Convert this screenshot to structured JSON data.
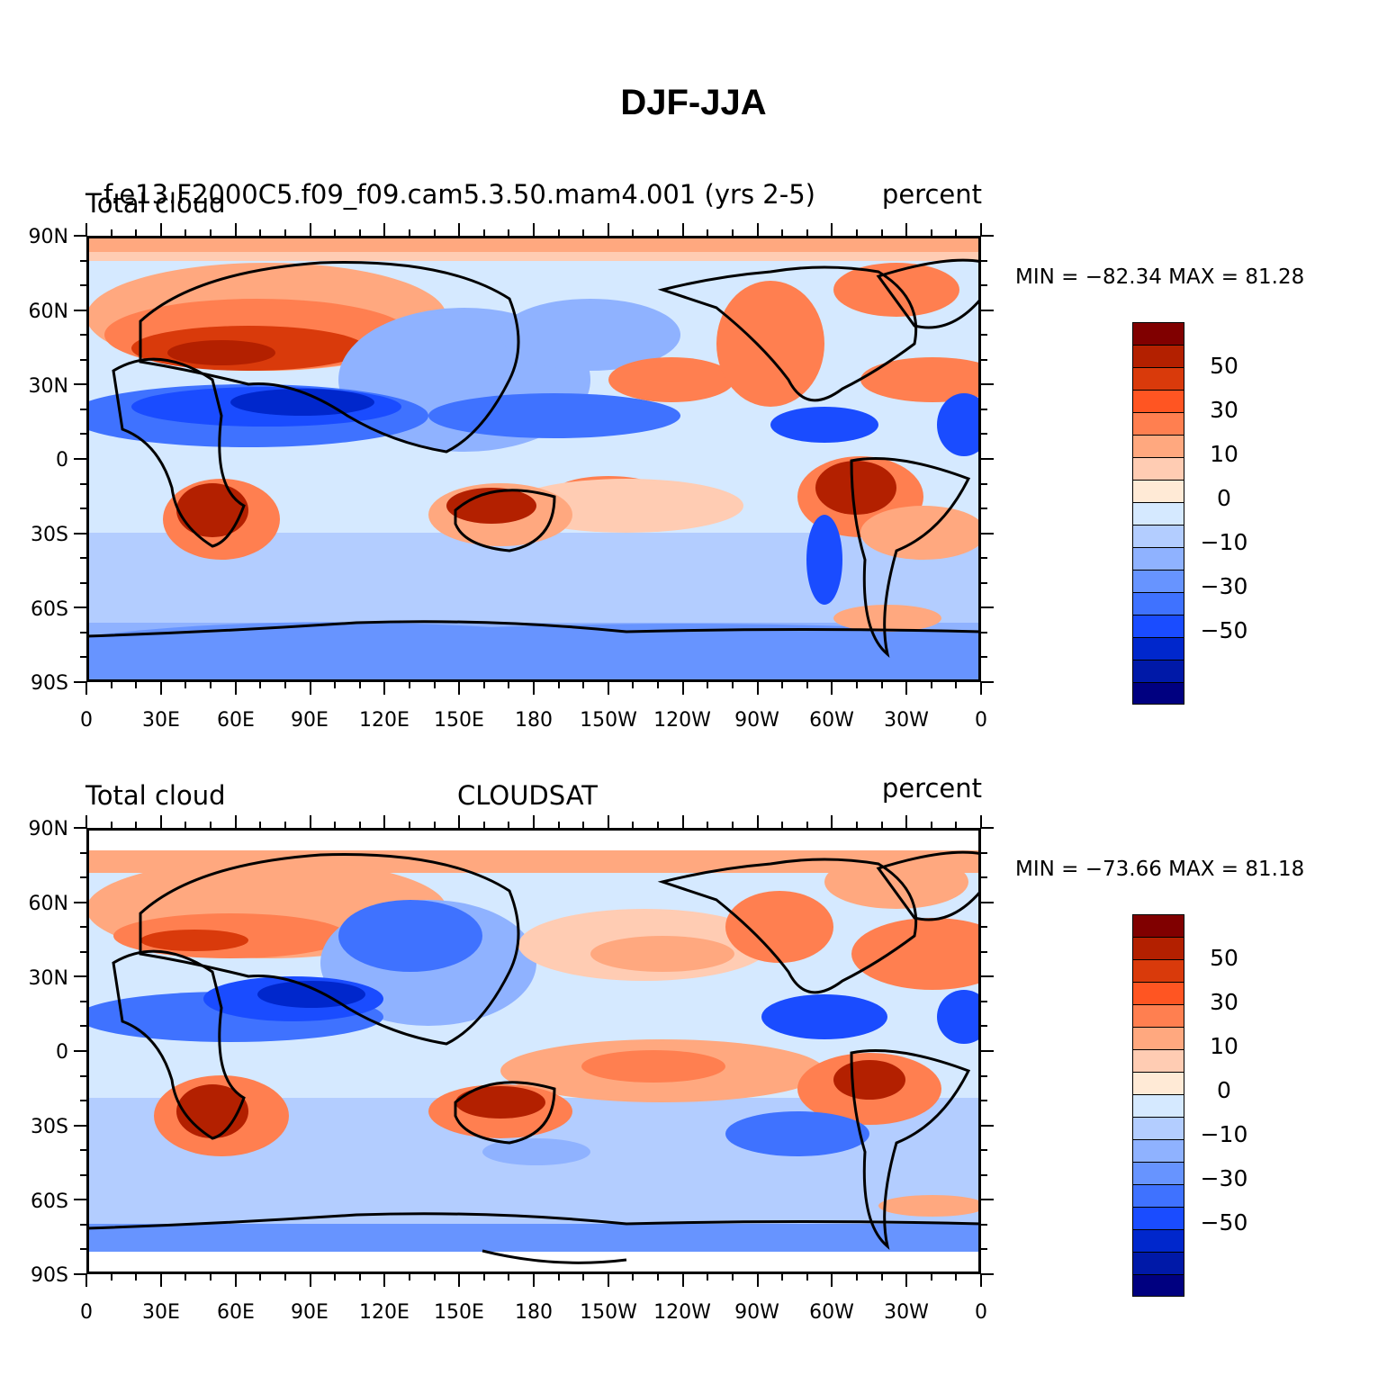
{
  "title": "DJF-JJA",
  "colors": [
    "#000080",
    "#0019a8",
    "#0027cc",
    "#1a4cff",
    "#3f72ff",
    "#6794ff",
    "#8fb2ff",
    "#b3cdff",
    "#d5e9ff",
    "#ffead6",
    "#ffccb3",
    "#ffa87f",
    "#ff7f50",
    "#ff5522",
    "#d93a0b",
    "#b32000",
    "#800000"
  ],
  "colorbar_labels": [
    "50",
    "30",
    "10",
    "0",
    "−10",
    "−30",
    "−50"
  ],
  "lat_labels": [
    "90N",
    "60N",
    "30N",
    "0",
    "30S",
    "60S",
    "90S"
  ],
  "lon_labels": [
    "0",
    "30E",
    "60E",
    "90E",
    "120E",
    "150E",
    "180",
    "150W",
    "120W",
    "90W",
    "60W",
    "30W",
    "0"
  ],
  "panels": [
    {
      "id": "model",
      "left_label": "Total cloud",
      "center_label": "f.e13.F2000C5.f09_f09.cam5.3.50.mam4.001  (yrs 2-5)",
      "right_label": "percent",
      "min_max": "MIN = −82.34  MAX =   81.28"
    },
    {
      "id": "cloudsat",
      "left_label": "Total cloud",
      "center_label": "CLOUDSAT",
      "right_label": "percent",
      "min_max": "MIN = −73.66  MAX =   81.18"
    }
  ],
  "chart_data": {
    "type": "heatmap",
    "title": "DJF-JJA",
    "variable": "Total cloud",
    "units": "percent",
    "x_range": [
      "0",
      "0"
    ],
    "y_range": [
      "90S",
      "90N"
    ],
    "contour_levels": [
      -60,
      -50,
      -40,
      -30,
      -20,
      -15,
      -10,
      -5,
      0,
      5,
      10,
      15,
      20,
      30,
      40,
      50,
      60
    ],
    "panels": [
      {
        "name": "f.e13.F2000C5.f09_f09.cam5.3.50.mam4.001  (yrs 2-5)",
        "min": -82.34,
        "max": 81.28
      },
      {
        "name": "CLOUDSAT",
        "min": -73.66,
        "max": 81.18
      }
    ]
  }
}
